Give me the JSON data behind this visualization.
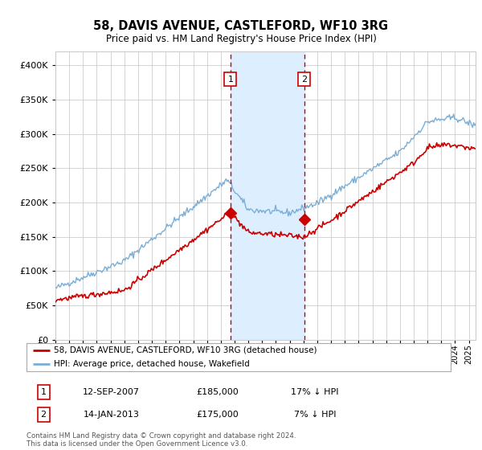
{
  "title": "58, DAVIS AVENUE, CASTLEFORD, WF10 3RG",
  "subtitle": "Price paid vs. HM Land Registry's House Price Index (HPI)",
  "legend_line1": "58, DAVIS AVENUE, CASTLEFORD, WF10 3RG (detached house)",
  "legend_line2": "HPI: Average price, detached house, Wakefield",
  "sale1_date": "12-SEP-2007",
  "sale1_price": "£185,000",
  "sale1_hpi": "17% ↓ HPI",
  "sale1_year": 2007.7,
  "sale1_value": 185000,
  "sale2_date": "14-JAN-2013",
  "sale2_price": "£175,000",
  "sale2_hpi": "7% ↓ HPI",
  "sale2_year": 2013.05,
  "sale2_value": 175000,
  "red_line_color": "#cc0000",
  "blue_line_color": "#7aaed6",
  "shade_color": "#ddeeff",
  "vline_color": "#cc0000",
  "dot_color": "#cc0000",
  "grid_color": "#cccccc",
  "bg_color": "#ffffff",
  "footer_text": "Contains HM Land Registry data © Crown copyright and database right 2024.\nThis data is licensed under the Open Government Licence v3.0.",
  "ylim": [
    0,
    420000
  ],
  "yticks": [
    0,
    50000,
    100000,
    150000,
    200000,
    250000,
    300000,
    350000,
    400000
  ],
  "xlim_left": 1995,
  "xlim_right": 2025.5
}
